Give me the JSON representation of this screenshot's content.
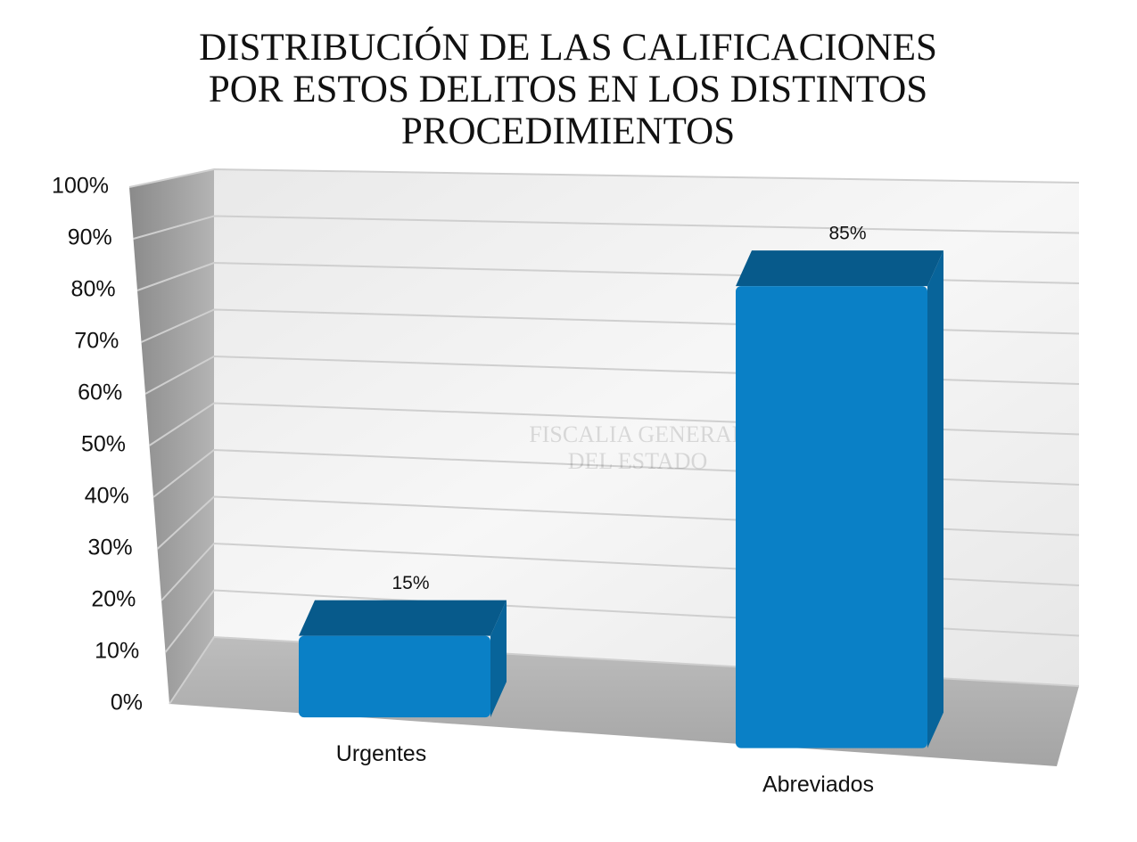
{
  "chart_data": {
    "type": "bar3d",
    "title": "DISTRIBUCIÓN DE LAS CALIFICACIONES POR ESTOS DELITOS EN LOS DISTINTOS PROCEDIMIENTOS",
    "watermark": [
      "FISCALIA GENERAL",
      "DEL ESTADO"
    ],
    "categories": [
      "Urgentes",
      "Abreviados"
    ],
    "values": [
      15,
      85
    ],
    "value_labels": [
      "15%",
      "85%"
    ],
    "color": "#0a80c6",
    "ylim": [
      0,
      100
    ],
    "yticks": [
      {
        "value": 0,
        "label": "0%"
      },
      {
        "value": 10,
        "label": "10%"
      },
      {
        "value": 20,
        "label": "20%"
      },
      {
        "value": 30,
        "label": "30%"
      },
      {
        "value": 40,
        "label": "40%"
      },
      {
        "value": 50,
        "label": "50%"
      },
      {
        "value": 60,
        "label": "60%"
      },
      {
        "value": 70,
        "label": "70%"
      },
      {
        "value": 80,
        "label": "80%"
      },
      {
        "value": 90,
        "label": "90%"
      },
      {
        "value": 100,
        "label": "100%"
      }
    ],
    "grid": true
  }
}
